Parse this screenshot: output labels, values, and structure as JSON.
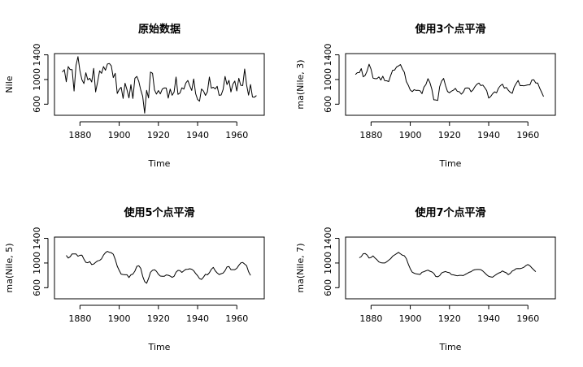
{
  "chart_data": [
    {
      "type": "line",
      "title": "原始数据",
      "xlabel": "Time",
      "ylabel": "Nile",
      "xlim": [
        1867,
        1974
      ],
      "ylim": [
        420,
        1420
      ],
      "xticks": [
        1880,
        1900,
        1920,
        1940,
        1960
      ],
      "yticks": [
        600,
        1000,
        1400
      ],
      "yticklabels": [
        "600",
        "1000",
        "1400"
      ],
      "grid": false,
      "series": [
        {
          "x_start": 1871,
          "values": [
            1120,
            1160,
            963,
            1210,
            1160,
            1160,
            813,
            1230,
            1370,
            1140,
            995,
            935,
            1110,
            994,
            1020,
            960,
            1180,
            799,
            958,
            1140,
            1100,
            1210,
            1150,
            1250,
            1260,
            1220,
            1030,
            1100,
            774,
            840,
            874,
            694,
            940,
            833,
            701,
            916,
            692,
            1020,
            1050,
            969,
            831,
            726,
            456,
            824,
            702,
            1120,
            1100,
            832,
            764,
            821,
            768,
            845,
            864,
            862,
            698,
            845,
            744,
            796,
            1040,
            759,
            781,
            865,
            845,
            944,
            984,
            897,
            822,
            1010,
            771,
            676,
            649,
            846,
            812,
            742,
            801,
            1040,
            860,
            874,
            848,
            890,
            744,
            749,
            838,
            1050,
            918,
            986,
            797,
            923,
            975,
            815,
            1020,
            906,
            901,
            1170,
            912,
            746,
            919,
            718,
            714,
            740
          ]
        }
      ]
    },
    {
      "type": "line",
      "title": "使用3个点平滑",
      "xlabel": "Time",
      "ylabel": "ma(Nile, 3)",
      "xlim": [
        1867,
        1974
      ],
      "ylim": [
        420,
        1420
      ],
      "xticks": [
        1880,
        1900,
        1920,
        1940,
        1960
      ],
      "yticks": [
        600,
        1000,
        1400
      ],
      "yticklabels": [
        "600",
        "1000",
        "1400"
      ],
      "grid": false,
      "series": [
        {
          "x_start": 1872,
          "values": [
            1081,
            1111,
            1111,
            1177,
            1044,
            1068,
            1138,
            1247,
            1168,
            1023,
            1013,
            1013,
            1041,
            991,
            1053,
            980,
            979,
            966,
            1066,
            1150,
            1153,
            1203,
            1220,
            1243,
            1170,
            1117,
            968,
            905,
            829,
            803,
            836,
            822,
            825,
            817,
            770,
            876,
            921,
            1013,
            950,
            842,
            671,
            669,
            661,
            882,
            974,
            1017,
            899,
            806,
            784,
            811,
            826,
            857,
            808,
            802,
            762,
            795,
            860,
            865,
            860,
            802,
            830,
            885,
            924,
            942,
            901,
            910,
            868,
            819,
            699,
            724,
            769,
            800,
            785,
            861,
            900,
            925,
            861,
            871,
            827,
            794,
            777,
            879,
            935,
            985,
            900,
            902,
            898,
            905,
            914,
            914,
            992,
            996,
            943,
            942,
            861,
            794,
            724
          ]
        }
      ]
    },
    {
      "type": "line",
      "title": "使用5个点平滑",
      "xlabel": "Time",
      "ylabel": "ma(Nile, 5)",
      "xlim": [
        1867,
        1974
      ],
      "ylim": [
        420,
        1420
      ],
      "xticks": [
        1880,
        1900,
        1920,
        1940,
        1960
      ],
      "yticks": [
        600,
        1000,
        1400
      ],
      "yticklabels": [
        "600",
        "1000",
        "1400"
      ],
      "grid": false,
      "series": [
        {
          "x_start": 1873,
          "values": [
            1123,
            1081,
            1101,
            1147,
            1147,
            1146,
            1110,
            1125,
            1126,
            1063,
            1011,
            1004,
            1023,
            974,
            983,
            1011,
            1035,
            1042,
            1069,
            1128,
            1167,
            1189,
            1172,
            1166,
            1143,
            1060,
            948,
            880,
            820,
            813,
            810,
            810,
            765,
            810,
            820,
            869,
            946,
            956,
            912,
            785,
            699,
            671,
            749,
            850,
            882,
            891,
            866,
            818,
            789,
            785,
            784,
            807,
            802,
            789,
            767,
            785,
            851,
            880,
            876,
            848,
            874,
            898,
            899,
            907,
            899,
            875,
            831,
            795,
            747,
            733,
            771,
            818,
            808,
            842,
            898,
            929,
            874,
            840,
            814,
            826,
            837,
            876,
            937,
            942,
            893,
            893,
            893,
            914,
            962,
            1000,
            1009,
            982,
            956,
            860,
            799
          ]
        }
      ]
    },
    {
      "type": "line",
      "title": "使用7个点平滑",
      "xlabel": "Time",
      "ylabel": "ma(Nile, 7)",
      "xlim": [
        1867,
        1974
      ],
      "ylim": [
        420,
        1420
      ],
      "xticks": [
        1880,
        1900,
        1920,
        1940,
        1960
      ],
      "yticks": [
        600,
        1000,
        1400
      ],
      "yticklabels": [
        "600",
        "1000",
        "1400"
      ],
      "grid": false,
      "series": [
        {
          "x_start": 1874,
          "values": [
            1084,
            1104,
            1150,
            1153,
            1129,
            1080,
            1090,
            1115,
            1080,
            1053,
            1017,
            1004,
            1000,
            1000,
            1020,
            1045,
            1071,
            1110,
            1130,
            1152,
            1173,
            1149,
            1127,
            1118,
            1071,
            980,
            905,
            851,
            834,
            824,
            820,
            815,
            850,
            860,
            874,
            884,
            868,
            856,
            833,
            782,
            777,
            795,
            838,
            853,
            862,
            849,
            843,
            812,
            808,
            800,
            792,
            800,
            800,
            796,
            815,
            830,
            849,
            860,
            882,
            893,
            895,
            895,
            893,
            870,
            840,
            808,
            785,
            775,
            770,
            795,
            817,
            836,
            848,
            871,
            854,
            841,
            812,
            832,
            870,
            885,
            908,
            910,
            908,
            917,
            932,
            958,
            975,
            955,
            920,
            889,
            860
          ]
        }
      ]
    }
  ]
}
